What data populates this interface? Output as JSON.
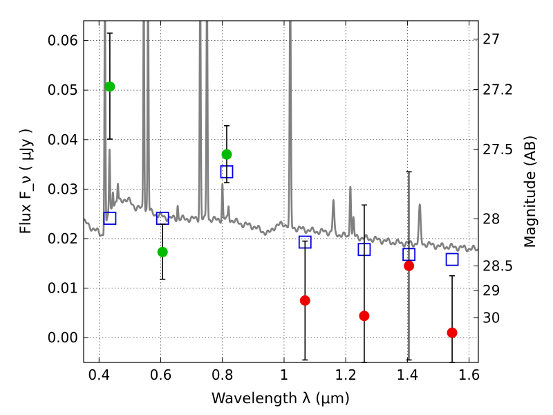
{
  "chart_data": {
    "type": "scatter",
    "xlabel": "Wavelength  λ (μm)",
    "ylabel": "Flux  F_ν  ( μJy )",
    "y2label": "Magnitude (AB)",
    "xlim": [
      0.35,
      1.63
    ],
    "ylim": [
      -0.005,
      0.064
    ],
    "x_ticks": [
      0.4,
      0.6,
      0.8,
      1.0,
      1.2,
      1.4,
      1.6
    ],
    "x_tick_labels": [
      "0.4",
      "0.6",
      "0.8",
      "1",
      "1.2",
      "1.4",
      "1.6"
    ],
    "y_ticks": [
      0.0,
      0.01,
      0.02,
      0.03,
      0.04,
      0.05,
      0.06
    ],
    "y_tick_labels": [
      "0.00",
      "0.01",
      "0.02",
      "0.03",
      "0.04",
      "0.05",
      "0.06"
    ],
    "y2_ticks": [
      {
        "label": "27",
        "flux": 0.0603
      },
      {
        "label": "27.2",
        "flux": 0.0501
      },
      {
        "label": "27.5",
        "flux": 0.038
      },
      {
        "label": "28",
        "flux": 0.024
      },
      {
        "label": "28.5",
        "flux": 0.0145
      },
      {
        "label": "29",
        "flux": 0.0095
      },
      {
        "label": "30",
        "flux": 0.004
      }
    ],
    "grid": true,
    "detections": {
      "color": "#00bb00",
      "points": [
        {
          "x": 0.435,
          "y": 0.0507,
          "yerr_low": 0.0401,
          "yerr_high": 0.0615
        },
        {
          "x": 0.606,
          "y": 0.0173,
          "yerr_low": 0.0118,
          "yerr_high": 0.0229
        },
        {
          "x": 0.814,
          "y": 0.037,
          "yerr_low": 0.0313,
          "yerr_high": 0.0428
        }
      ]
    },
    "non_detections": {
      "color": "#ee0000",
      "points": [
        {
          "x": 1.068,
          "y": 0.0075,
          "yerr_low": -0.0045,
          "yerr_high": 0.0195
        },
        {
          "x": 1.26,
          "y": 0.0044,
          "yerr_low": -0.005,
          "yerr_high": 0.0268
        },
        {
          "x": 1.405,
          "y": 0.0145,
          "yerr_low": -0.0045,
          "yerr_high": 0.0335
        },
        {
          "x": 1.545,
          "y": 0.001,
          "yerr_low": -0.005,
          "yerr_high": 0.0125
        }
      ]
    },
    "model_photometry": {
      "color": "#0000dd",
      "points": [
        {
          "x": 0.435,
          "y": 0.0241
        },
        {
          "x": 0.606,
          "y": 0.0241
        },
        {
          "x": 0.814,
          "y": 0.0335
        },
        {
          "x": 1.068,
          "y": 0.0193
        },
        {
          "x": 1.26,
          "y": 0.0178
        },
        {
          "x": 1.405,
          "y": 0.0168
        },
        {
          "x": 1.545,
          "y": 0.0158
        }
      ]
    },
    "sed_model": {
      "color": "#808080",
      "continuum": [
        [
          0.35,
          0.0235
        ],
        [
          0.36,
          0.023
        ],
        [
          0.38,
          0.022
        ],
        [
          0.4,
          0.0212
        ],
        [
          0.41,
          0.0208
        ],
        [
          0.42,
          0.0212
        ],
        [
          0.43,
          0.025
        ],
        [
          0.45,
          0.027
        ],
        [
          0.48,
          0.028
        ],
        [
          0.5,
          0.0275
        ],
        [
          0.52,
          0.0262
        ],
        [
          0.55,
          0.026
        ],
        [
          0.58,
          0.025
        ],
        [
          0.62,
          0.0242
        ],
        [
          0.66,
          0.024
        ],
        [
          0.7,
          0.024
        ],
        [
          0.74,
          0.024
        ],
        [
          0.78,
          0.0238
        ],
        [
          0.82,
          0.024
        ],
        [
          0.86,
          0.023
        ],
        [
          0.9,
          0.0225
        ],
        [
          0.93,
          0.0215
        ],
        [
          0.95,
          0.021
        ],
        [
          0.97,
          0.0225
        ],
        [
          1.0,
          0.023
        ],
        [
          1.02,
          0.0223
        ],
        [
          1.05,
          0.022
        ],
        [
          1.1,
          0.0215
        ],
        [
          1.15,
          0.0213
        ],
        [
          1.2,
          0.0205
        ],
        [
          1.25,
          0.0202
        ],
        [
          1.3,
          0.0198
        ],
        [
          1.35,
          0.0193
        ],
        [
          1.4,
          0.019
        ],
        [
          1.45,
          0.019
        ],
        [
          1.5,
          0.0185
        ],
        [
          1.55,
          0.0183
        ],
        [
          1.6,
          0.018
        ],
        [
          1.63,
          0.0178
        ]
      ],
      "emission_lines": [
        {
          "x": 0.419,
          "peak": 0.07,
          "sigma": 0.0016
        },
        {
          "x": 0.434,
          "peak": 0.038,
          "sigma": 0.0016
        },
        {
          "x": 0.445,
          "peak": 0.03,
          "sigma": 0.0016
        },
        {
          "x": 0.461,
          "peak": 0.031,
          "sigma": 0.0016
        },
        {
          "x": 0.545,
          "peak": 0.07,
          "sigma": 0.0016
        },
        {
          "x": 0.559,
          "peak": 0.07,
          "sigma": 0.0016
        },
        {
          "x": 0.655,
          "peak": 0.0268,
          "sigma": 0.0016
        },
        {
          "x": 0.728,
          "peak": 0.07,
          "sigma": 0.0018
        },
        {
          "x": 0.75,
          "peak": 0.07,
          "sigma": 0.0018
        },
        {
          "x": 0.8,
          "peak": 0.031,
          "sigma": 0.0016
        },
        {
          "x": 0.82,
          "peak": 0.0265,
          "sigma": 0.0016
        },
        {
          "x": 1.02,
          "peak": 0.07,
          "sigma": 0.002
        },
        {
          "x": 1.16,
          "peak": 0.0275,
          "sigma": 0.0025
        },
        {
          "x": 1.215,
          "peak": 0.0312,
          "sigma": 0.002
        },
        {
          "x": 1.225,
          "peak": 0.024,
          "sigma": 0.002
        },
        {
          "x": 1.44,
          "peak": 0.0262,
          "sigma": 0.003
        }
      ]
    }
  }
}
